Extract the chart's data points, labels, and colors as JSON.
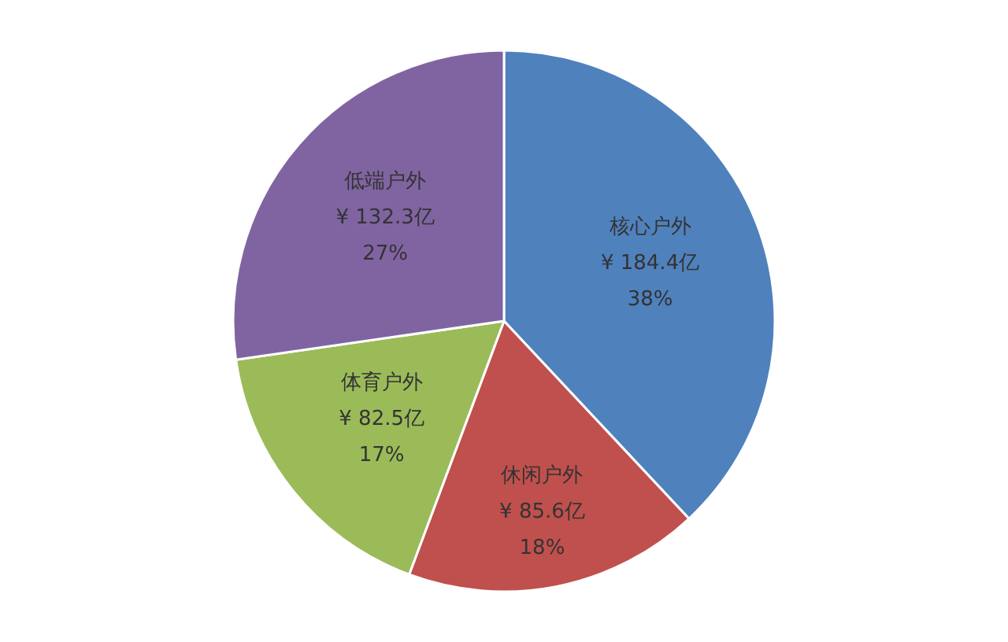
{
  "chart_data": {
    "type": "pie",
    "categories": [
      "核心户外",
      "休闲户外",
      "体育户外",
      "低端户外"
    ],
    "values": [
      184.4,
      85.6,
      82.5,
      132.3
    ],
    "value_labels": [
      "¥ 184.4亿\n38%",
      "¥ 85.6亿\n18%",
      "¥ 82.5亿\n17%",
      "¥ 132.3亿\n27%"
    ],
    "colors": [
      "#4f81bd",
      "#c0504d",
      "#9bbb59",
      "#8064a2"
    ],
    "legend": false
  }
}
